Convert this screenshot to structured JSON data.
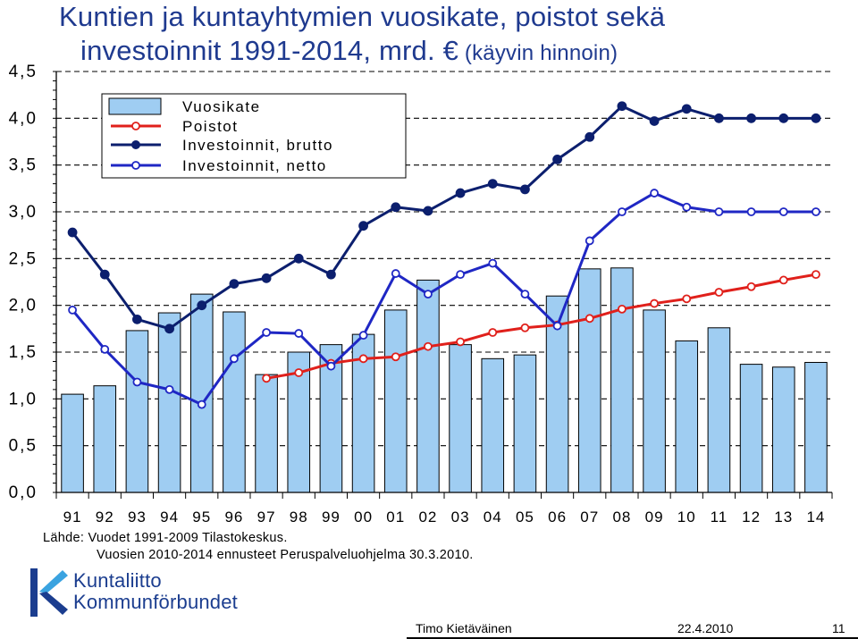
{
  "title": {
    "line1": "Kuntien ja kuntayhtymien vuosikate, poistot sekä",
    "line2": "investoinnit 1991-2014, mrd. €",
    "line2_suffix": " (käyvin hinnoin)"
  },
  "chart_data": {
    "type": "bar",
    "categories": [
      "91",
      "92",
      "93",
      "94",
      "95",
      "96",
      "97",
      "98",
      "99",
      "00",
      "01",
      "02",
      "03",
      "04",
      "05",
      "06",
      "07",
      "08",
      "09",
      "10",
      "11",
      "12",
      "13",
      "14"
    ],
    "ylim": [
      0,
      4.5
    ],
    "yticks": [
      "0,0",
      "0,5",
      "1,0",
      "1,5",
      "2,0",
      "2,5",
      "3,0",
      "3,5",
      "4,0",
      "4,5"
    ],
    "grid": "dashed horizontal",
    "legend_position": "top-left",
    "series": [
      {
        "name": "Vuosikate",
        "type": "bar",
        "color": "#9fcdf2",
        "values": [
          1.05,
          1.14,
          1.73,
          1.92,
          2.12,
          1.93,
          1.26,
          1.5,
          1.58,
          1.69,
          1.95,
          2.27,
          1.58,
          1.43,
          1.47,
          2.1,
          2.39,
          2.4,
          1.95,
          1.62,
          1.76,
          1.37,
          1.34,
          1.39
        ]
      },
      {
        "name": "Poistot",
        "type": "line",
        "color": "#e0201b",
        "values": [
          null,
          null,
          null,
          null,
          null,
          null,
          1.22,
          1.28,
          1.38,
          1.43,
          1.45,
          1.56,
          1.61,
          1.71,
          1.76,
          1.79,
          1.86,
          1.96,
          2.02,
          2.07,
          2.14,
          2.2,
          2.27,
          2.33
        ]
      },
      {
        "name": "Investoinnit, brutto",
        "type": "line",
        "color": "#0c1f6e",
        "values": [
          2.78,
          2.33,
          1.85,
          1.75,
          2.0,
          2.23,
          2.29,
          2.5,
          2.33,
          2.85,
          3.05,
          3.01,
          3.2,
          3.3,
          3.24,
          3.56,
          3.8,
          4.13,
          3.97,
          4.1,
          4.0,
          4.0,
          4.0,
          4.0
        ]
      },
      {
        "name": "Investoinnit, netto",
        "type": "line",
        "color": "#1f27c4",
        "values": [
          1.95,
          1.53,
          1.18,
          1.1,
          0.94,
          1.43,
          1.71,
          1.7,
          1.35,
          1.68,
          2.34,
          2.12,
          2.33,
          2.45,
          2.12,
          1.78,
          2.69,
          3.0,
          3.2,
          3.05,
          3.0,
          3.0,
          3.0,
          3.0
        ]
      }
    ]
  },
  "source": {
    "line1": "Lähde: Vuodet 1991-2009 Tilastokeskus.",
    "line2": "Vuosien 2010-2014 ennusteet Peruspalveluohjelma 30.3.2010."
  },
  "logo": {
    "line1": "Kuntaliitto",
    "line2": "Kommunförbundet"
  },
  "footer": {
    "author": "Timo Kietäväinen",
    "date": "22.4.2010",
    "page": "11"
  }
}
